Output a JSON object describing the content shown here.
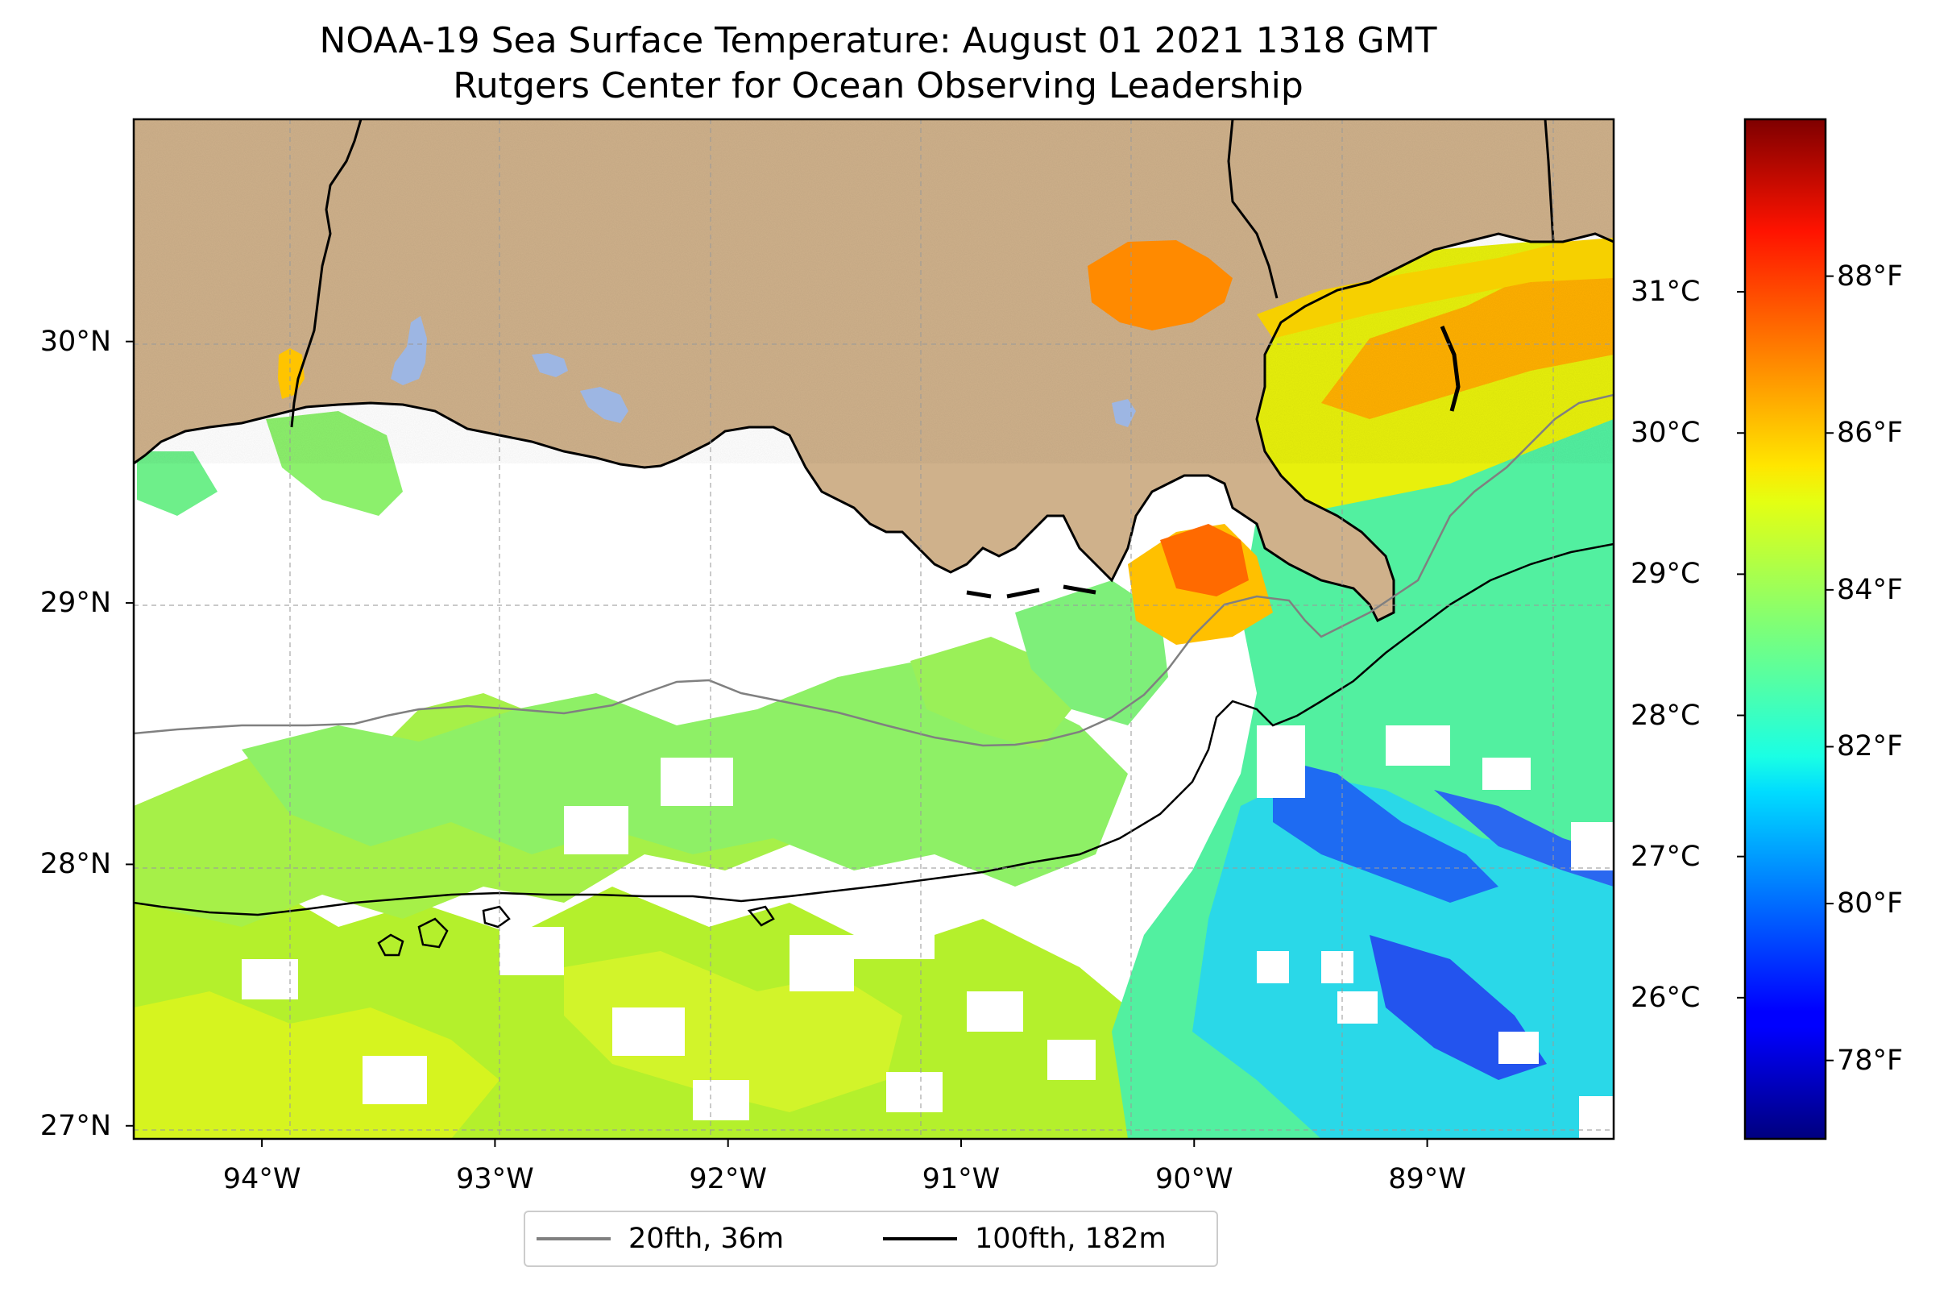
{
  "title": {
    "line1": "NOAA-19 Sea Surface Temperature: August 01 2021 1318 GMT",
    "line2": "Rutgers Center for Ocean Observing Leadership"
  },
  "map": {
    "lon_range": [
      -94.55,
      -88.2
    ],
    "lat_range": [
      26.95,
      30.85
    ],
    "lat_ticks": [
      {
        "value": 30,
        "label": "30°N"
      },
      {
        "value": 29,
        "label": "29°N"
      },
      {
        "value": 28,
        "label": "28°N"
      },
      {
        "value": 27,
        "label": "27°N"
      }
    ],
    "lon_ticks": [
      {
        "value": -94,
        "label": "94°W"
      },
      {
        "value": -93,
        "label": "93°W"
      },
      {
        "value": -92,
        "label": "92°W"
      },
      {
        "value": -91,
        "label": "91°W"
      },
      {
        "value": -90,
        "label": "90°W"
      },
      {
        "value": -89,
        "label": "89°W"
      }
    ],
    "gridlines": true,
    "land_color": "#cfb18b",
    "lake_color": "#9db6e3",
    "contours": [
      {
        "label": "20fth, 36m",
        "color": "#808080"
      },
      {
        "label": "100fth, 182m",
        "color": "#000000"
      }
    ]
  },
  "colorbar": {
    "colormap": "jet",
    "range_f": [
      77,
      90
    ],
    "celsius_ticks": [
      {
        "value": 31,
        "label": "31°C"
      },
      {
        "value": 30,
        "label": "30°C"
      },
      {
        "value": 29,
        "label": "29°C"
      },
      {
        "value": 28,
        "label": "28°C"
      },
      {
        "value": 27,
        "label": "27°C"
      },
      {
        "value": 26,
        "label": "26°C"
      }
    ],
    "fahrenheit_ticks": [
      {
        "value": 88,
        "label": "88°F"
      },
      {
        "value": 86,
        "label": "86°F"
      },
      {
        "value": 84,
        "label": "84°F"
      },
      {
        "value": 82,
        "label": "82°F"
      },
      {
        "value": 80,
        "label": "80°F"
      },
      {
        "value": 78,
        "label": "78°F"
      }
    ]
  },
  "legend": {
    "placement": "bottom-center",
    "entries": [
      {
        "label": "20fth, 36m",
        "color": "#808080"
      },
      {
        "label": "100fth, 182m",
        "color": "#000000"
      }
    ]
  }
}
